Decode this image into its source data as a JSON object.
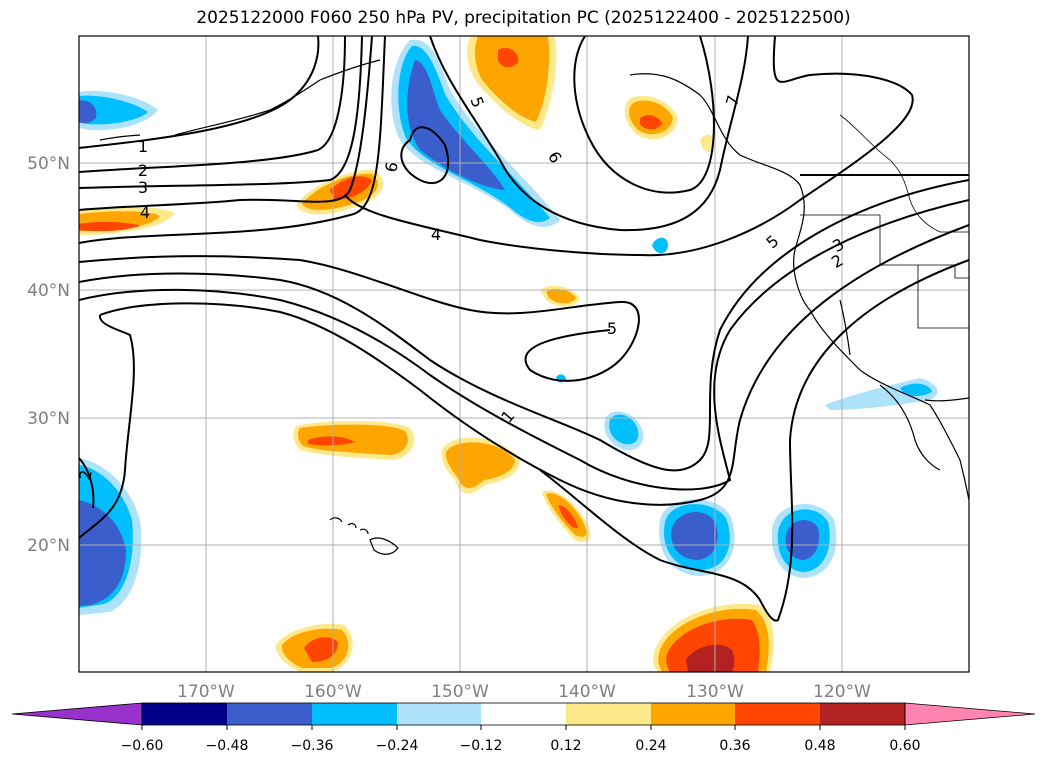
{
  "title": "2025122000 F060 250 hPa PV, precipitation PC (2025122400 - 2025122500)",
  "map": {
    "lat_labels": [
      "50°N",
      "40°N",
      "30°N",
      "20°N"
    ],
    "lon_labels": [
      "170°W",
      "160°W",
      "150°W",
      "140°W",
      "130°W",
      "120°W"
    ],
    "extent": {
      "lon_min": -180,
      "lon_max": -110,
      "lat_min": 10,
      "lat_max": 60
    },
    "contour_levels": [
      "1",
      "2",
      "3",
      "4",
      "5",
      "6",
      "7"
    ],
    "contour_labels": [
      {
        "text": "1",
        "id": "pv-1-left"
      },
      {
        "text": "2",
        "id": "pv-2-left"
      },
      {
        "text": "3",
        "id": "pv-3-left"
      },
      {
        "text": "4",
        "id": "pv-4-left"
      },
      {
        "text": "5",
        "id": "pv-5-top"
      },
      {
        "text": "6",
        "id": "pv-6-center"
      },
      {
        "text": "6",
        "id": "pv-6-left"
      },
      {
        "text": "4",
        "id": "pv-4-center"
      },
      {
        "text": "7",
        "id": "pv-7-top"
      },
      {
        "text": "5",
        "id": "pv-5-right"
      },
      {
        "text": "3",
        "id": "pv-3-right"
      },
      {
        "text": "2",
        "id": "pv-2-right"
      },
      {
        "text": "5",
        "id": "pv-5-mid"
      },
      {
        "text": "1",
        "id": "pv-1-center"
      },
      {
        "text": "2",
        "id": "pv-2-bottomleft"
      }
    ]
  },
  "colorbar": {
    "labels": [
      "−0.60",
      "−0.48",
      "−0.36",
      "−0.24",
      "−0.12",
      "0.12",
      "0.24",
      "0.36",
      "0.48",
      "0.60"
    ],
    "colors": [
      "#9932cc",
      "#00008b",
      "#3a5fcd",
      "#00bfff",
      "#aee2fa",
      "#ffffff",
      "#fde98a",
      "#ffa500",
      "#ff4500",
      "#b22222",
      "#ff85b0"
    ]
  },
  "fill_colors": {
    "neg_light": "#aee2fa",
    "neg_mid": "#00bfff",
    "neg_dark": "#3a5fcd",
    "pos_light": "#fde98a",
    "pos_mid": "#ffa500",
    "pos_dark": "#ff4500",
    "pos_darker": "#b22222"
  }
}
